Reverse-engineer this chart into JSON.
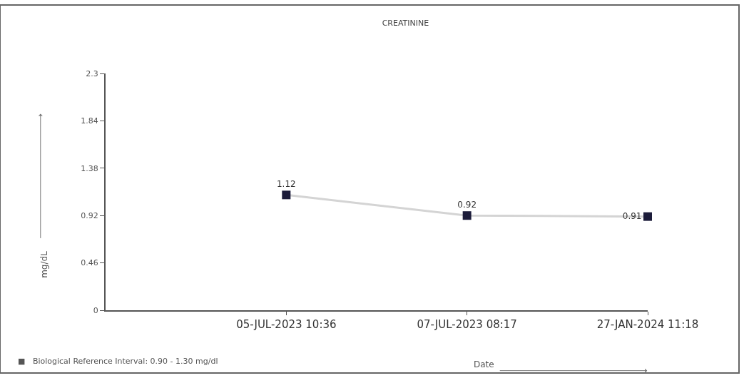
{
  "chart_data": {
    "type": "line",
    "title": "CREATININE",
    "ylabel": "mg/dL",
    "xlabel": "Date",
    "categories": [
      "05-JUL-2023 10:36",
      "07-JUL-2023 08:17",
      "27-JAN-2024 11:18"
    ],
    "series": [
      {
        "color": "#1c1c3a",
        "values": [
          1.12,
          0.92,
          0.91
        ]
      }
    ],
    "ylim": [
      0,
      2.3
    ],
    "yticks": [
      0,
      0.46,
      0.92,
      1.38,
      1.84,
      2.3
    ],
    "marker": "square",
    "line_style": "solid",
    "data_labels": true,
    "annotations": [
      "■   Biological Reference Interval: 0.90 - 1.30 mg/dl"
    ]
  }
}
